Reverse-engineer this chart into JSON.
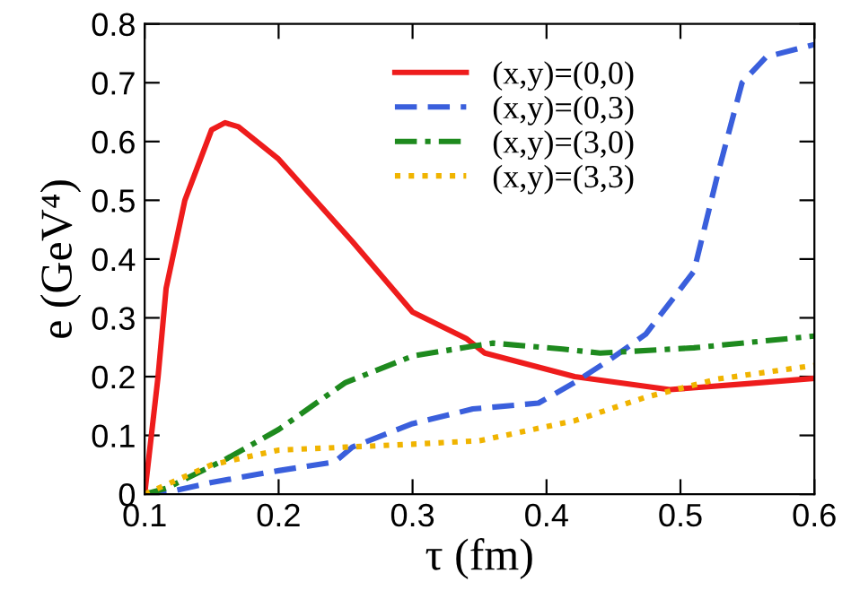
{
  "chart_data": {
    "type": "line",
    "xlabel": "τ (fm)",
    "ylabel": "e (GeV⁴)",
    "xlim": [
      0.1,
      0.6
    ],
    "ylim": [
      0,
      0.8
    ],
    "xticks": [
      0.1,
      0.2,
      0.3,
      0.4,
      0.5,
      0.6
    ],
    "yticks": [
      0,
      0.1,
      0.2,
      0.3,
      0.4,
      0.5,
      0.6,
      0.7,
      0.8
    ],
    "grid": false,
    "legend": "top right",
    "marker": "none",
    "series": [
      {
        "name": "(x,y)=(0,0)",
        "color": "#ee1c1c",
        "line_style": "solid",
        "x": [
          0.1,
          0.11,
          0.116,
          0.13,
          0.15,
          0.16,
          0.17,
          0.2,
          0.255,
          0.3,
          0.34,
          0.354,
          0.421,
          0.492,
          0.55,
          0.6
        ],
        "values": [
          0,
          0.2,
          0.35,
          0.5,
          0.62,
          0.632,
          0.625,
          0.57,
          0.43,
          0.31,
          0.265,
          0.24,
          0.2,
          0.178,
          0.188,
          0.197
        ]
      },
      {
        "name": "(x,y)=(0,3)",
        "color": "#3a5fdc",
        "line_style": "dashed",
        "x": [
          0.1,
          0.12,
          0.15,
          0.2,
          0.242,
          0.255,
          0.3,
          0.345,
          0.394,
          0.421,
          0.448,
          0.474,
          0.51,
          0.528,
          0.546,
          0.564,
          0.6
        ],
        "values": [
          0,
          0.005,
          0.02,
          0.04,
          0.055,
          0.08,
          0.12,
          0.145,
          0.155,
          0.19,
          0.23,
          0.272,
          0.379,
          0.546,
          0.7,
          0.744,
          0.765
        ]
      },
      {
        "name": "(x,y)=(3,0)",
        "color": "#1e8a1e",
        "line_style": "dashdot",
        "x": [
          0.1,
          0.116,
          0.161,
          0.2,
          0.25,
          0.3,
          0.34,
          0.36,
          0.412,
          0.44,
          0.51,
          0.6
        ],
        "values": [
          0,
          0.01,
          0.06,
          0.11,
          0.19,
          0.235,
          0.25,
          0.257,
          0.247,
          0.24,
          0.249,
          0.269
        ]
      },
      {
        "name": "(x,y)=(3,3)",
        "color": "#f0b400",
        "line_style": "dotted",
        "x": [
          0.1,
          0.12,
          0.15,
          0.2,
          0.25,
          0.3,
          0.35,
          0.421,
          0.474,
          0.528,
          0.6
        ],
        "values": [
          0,
          0.02,
          0.05,
          0.075,
          0.08,
          0.085,
          0.091,
          0.125,
          0.165,
          0.196,
          0.219
        ]
      }
    ]
  }
}
